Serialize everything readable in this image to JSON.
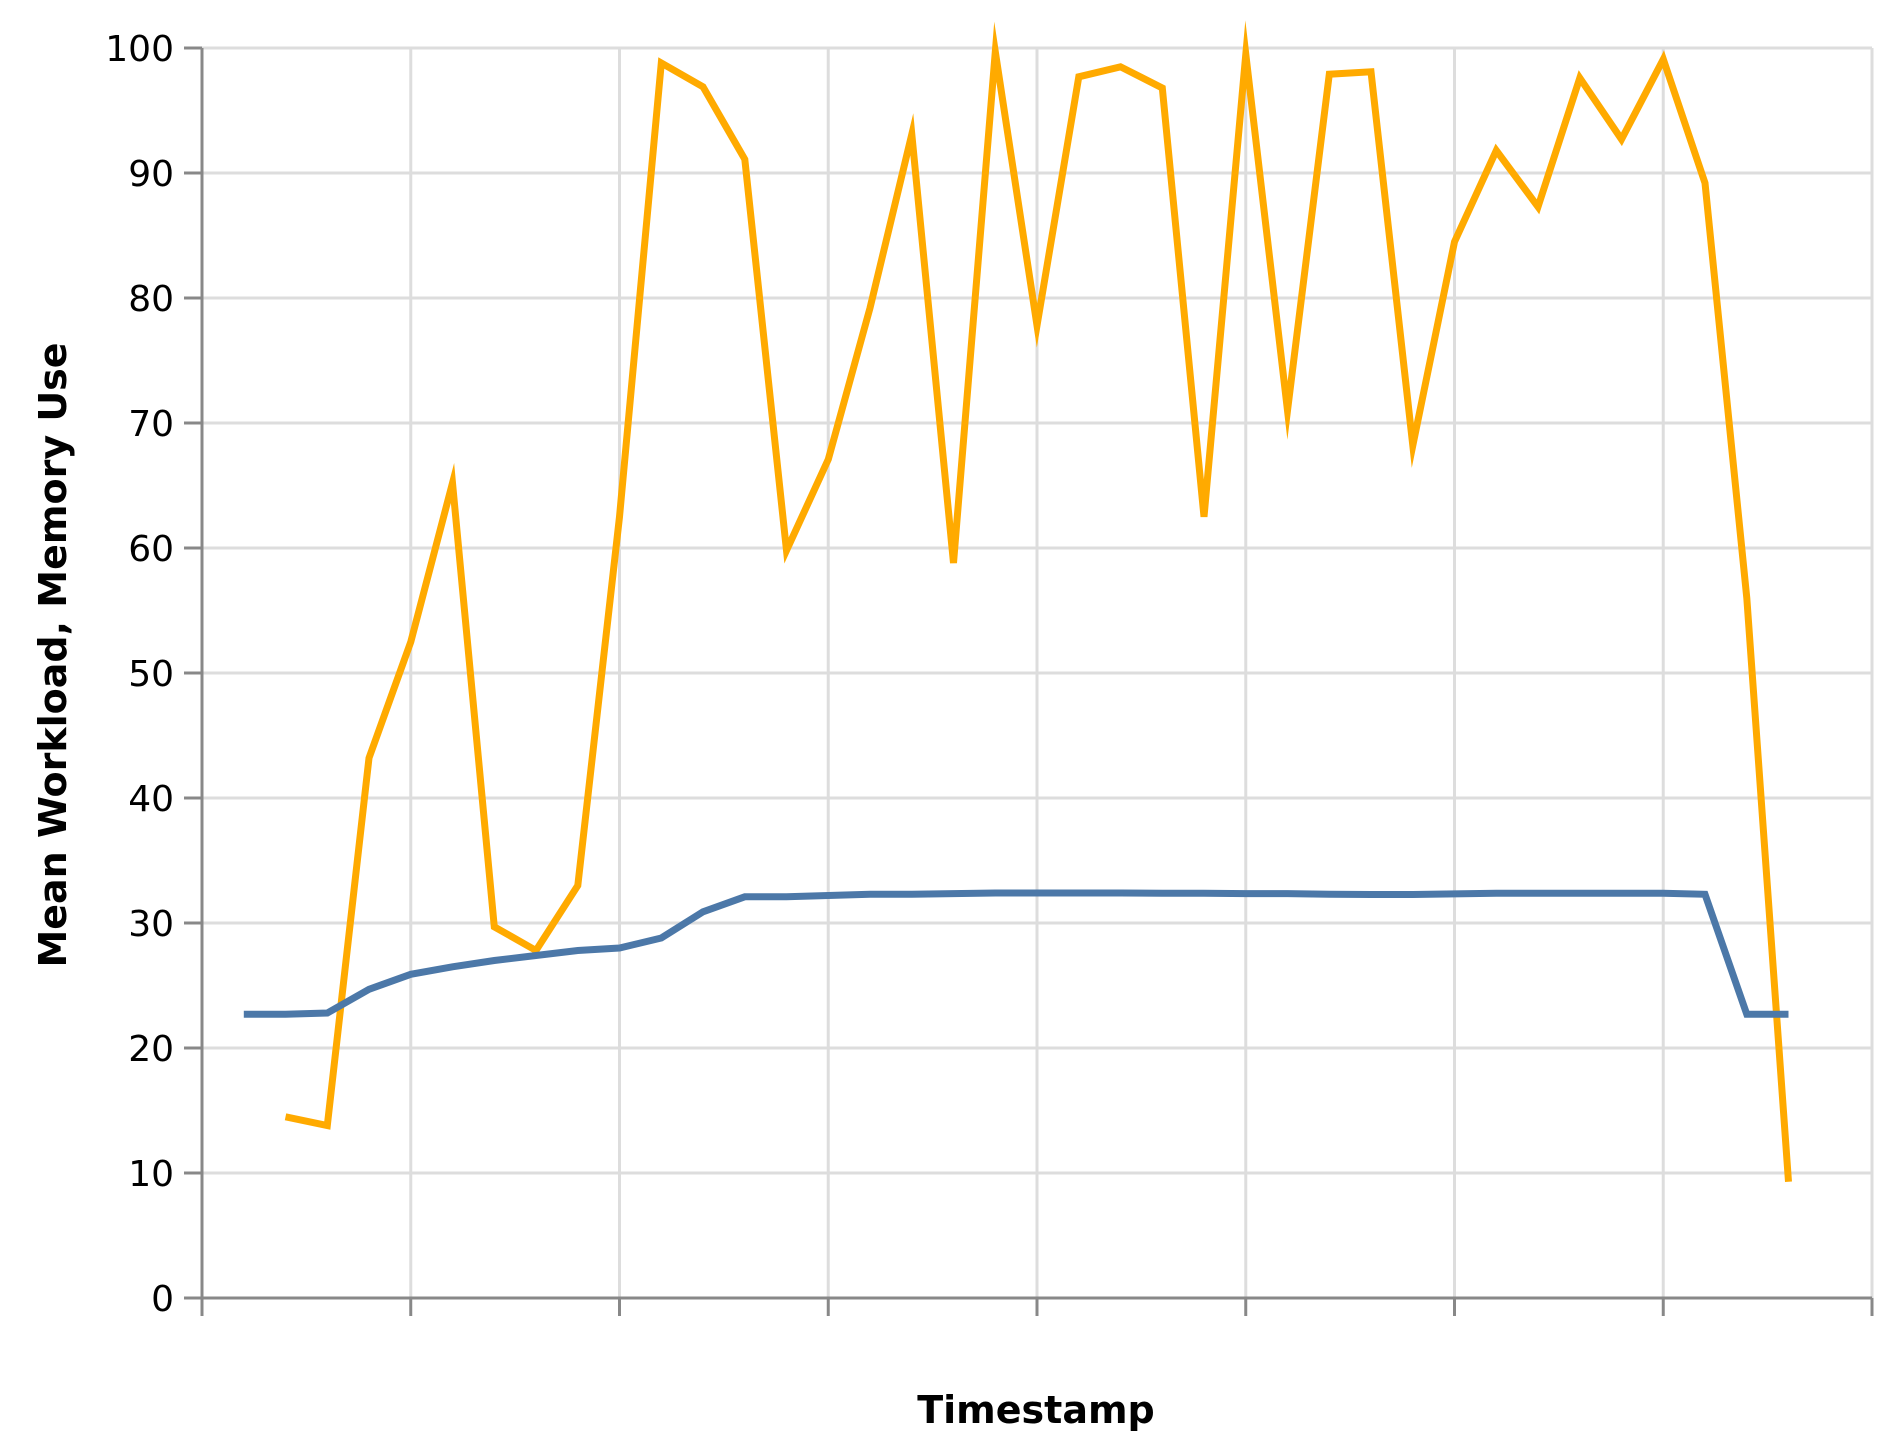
{
  "chart_data": {
    "type": "line",
    "title": "",
    "xlabel": "Timestamp",
    "ylabel": "Mean Workload, Memory Use",
    "ylim": [
      0,
      100
    ],
    "y_ticks": [
      0,
      10,
      20,
      30,
      40,
      50,
      60,
      70,
      80,
      90,
      100
    ],
    "x_tick_count": 9,
    "x_tick_labels": [],
    "grid": true,
    "legend": "none",
    "x": [
      0.2,
      0.4,
      0.6,
      0.8,
      1.0,
      1.2,
      1.4,
      1.6,
      1.8,
      2.0,
      2.2,
      2.4,
      2.6,
      2.8,
      3.0,
      3.2,
      3.4,
      3.6,
      3.8,
      4.0,
      4.2,
      4.4,
      4.6,
      4.8,
      5.0,
      5.2,
      5.4,
      5.6,
      5.8,
      6.0,
      6.2,
      6.4,
      6.6,
      6.8,
      7.0,
      7.2,
      7.4,
      7.6
    ],
    "series": [
      {
        "color": "#ffaa00",
        "values": [
          null,
          14.5,
          13.8,
          43.2,
          52.5,
          65.2,
          29.7,
          27.8,
          33.0,
          62.5,
          98.8,
          96.9,
          91.1,
          59.8,
          67.1,
          79.2,
          93.1,
          58.8,
          99.7,
          77.8,
          97.7,
          98.5,
          96.8,
          62.5,
          99.5,
          71.0,
          97.9,
          98.1,
          68.2,
          84.5,
          91.8,
          87.3,
          97.6,
          92.7,
          99.1,
          89.2,
          56.0,
          9.3
        ]
      },
      {
        "color": "#4c78a8",
        "values": [
          22.7,
          22.7,
          22.8,
          24.7,
          25.9,
          26.5,
          27.0,
          27.4,
          27.8,
          28.0,
          28.8,
          30.9,
          32.1,
          32.1,
          32.2,
          32.3,
          32.3,
          32.35,
          32.4,
          32.4,
          32.4,
          32.4,
          32.38,
          32.38,
          32.35,
          32.35,
          32.3,
          32.28,
          32.28,
          32.33,
          32.38,
          32.38,
          32.38,
          32.38,
          32.38,
          32.3,
          22.7,
          22.7
        ]
      }
    ]
  }
}
